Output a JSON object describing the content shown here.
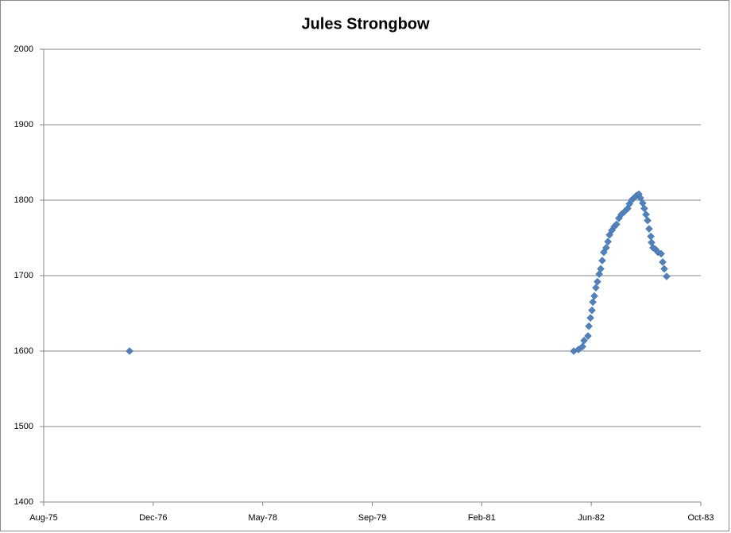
{
  "chart_data": {
    "type": "scatter",
    "title": "Jules Strongbow",
    "series": [
      {
        "color": "#4f81bd",
        "x": [
          28012,
          30040,
          30061,
          30080,
          30087,
          30105,
          30109,
          30116,
          30123,
          30127,
          30134,
          30141,
          30148,
          30156,
          30163,
          30170,
          30177,
          30188,
          30196,
          30203,
          30214,
          30225,
          30235,
          30246,
          30257,
          30272,
          30286,
          30294,
          30304,
          30315,
          30326,
          30337,
          30344,
          30355,
          30362,
          30370,
          30377,
          30384,
          30392,
          30395,
          30402,
          30413,
          30424,
          30439,
          30446,
          30453,
          30464
        ],
        "values": [
          1600,
          1600,
          1602,
          1606,
          1614,
          1620,
          1633,
          1644,
          1654,
          1665,
          1673,
          1684,
          1692,
          1702,
          1709,
          1720,
          1731,
          1737,
          1745,
          1754,
          1760,
          1765,
          1768,
          1776,
          1781,
          1785,
          1789,
          1795,
          1800,
          1803,
          1806,
          1808,
          1803,
          1796,
          1789,
          1781,
          1773,
          1762,
          1752,
          1744,
          1737,
          1735,
          1731,
          1729,
          1718,
          1709,
          1699
        ]
      }
    ],
    "xlim": [
      27620,
      30620
    ],
    "xticks": [
      {
        "value": 27620,
        "label": "Aug-75"
      },
      {
        "value": 28120,
        "label": "Dec-76"
      },
      {
        "value": 28620,
        "label": "May-78"
      },
      {
        "value": 29120,
        "label": "Sep-79"
      },
      {
        "value": 29620,
        "label": "Feb-81"
      },
      {
        "value": 30120,
        "label": "Jun-82"
      },
      {
        "value": 30620,
        "label": "Oct-83"
      }
    ],
    "ylim": [
      1400,
      2000
    ],
    "yticks": [
      1400,
      1500,
      1600,
      1700,
      1800,
      1900,
      2000
    ],
    "grid": true
  }
}
